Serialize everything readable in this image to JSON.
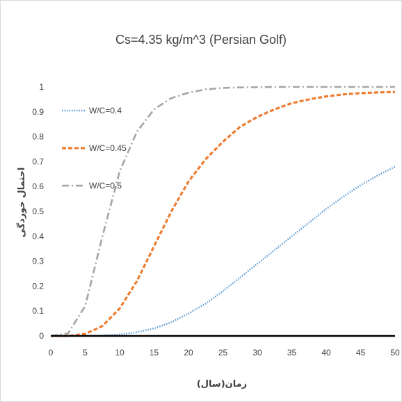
{
  "chart_data": {
    "type": "line",
    "title": "Cs=4.35 kg/m^3 (Persian Golf)",
    "xlabel": "زمان(سال)",
    "ylabel": "احتمال خوردگی",
    "xlim": [
      0,
      50
    ],
    "ylim": [
      0,
      1
    ],
    "xticks": [
      "0",
      "5",
      "10",
      "15",
      "20",
      "25",
      "30",
      "35",
      "40",
      "45",
      "50"
    ],
    "yticks": [
      "0",
      "0.1",
      "0.2",
      "0.3",
      "0.4",
      "0.5",
      "0.6",
      "0.7",
      "0.8",
      "0.9",
      "1"
    ],
    "grid": false,
    "legend_position": "top-left",
    "x": [
      0,
      2.5,
      5,
      7.5,
      10,
      12.5,
      15,
      17.5,
      20,
      22.5,
      25,
      27.5,
      30,
      32.5,
      35,
      37.5,
      40,
      42.5,
      45,
      47.5,
      50
    ],
    "series": [
      {
        "name": "W/C=0.4",
        "color": "#5b9bd5",
        "dash": "dotted",
        "values": [
          0,
          0,
          0,
          0.002,
          0.006,
          0.015,
          0.03,
          0.055,
          0.09,
          0.13,
          0.18,
          0.235,
          0.29,
          0.345,
          0.4,
          0.455,
          0.51,
          0.56,
          0.605,
          0.645,
          0.68
        ]
      },
      {
        "name": "W/C=0.45",
        "color": "#ed7d31",
        "dash": "dashed",
        "values": [
          0,
          0,
          0.008,
          0.04,
          0.11,
          0.22,
          0.36,
          0.5,
          0.62,
          0.71,
          0.78,
          0.84,
          0.88,
          0.91,
          0.935,
          0.95,
          0.962,
          0.97,
          0.975,
          0.978,
          0.98
        ]
      },
      {
        "name": "W/C=0.5",
        "color": "#a5a5a5",
        "dash": "dashdot",
        "values": [
          0,
          0.01,
          0.12,
          0.4,
          0.66,
          0.82,
          0.91,
          0.955,
          0.977,
          0.99,
          0.996,
          0.998,
          0.999,
          1,
          1,
          1,
          1,
          1,
          1,
          1,
          1
        ]
      }
    ]
  }
}
